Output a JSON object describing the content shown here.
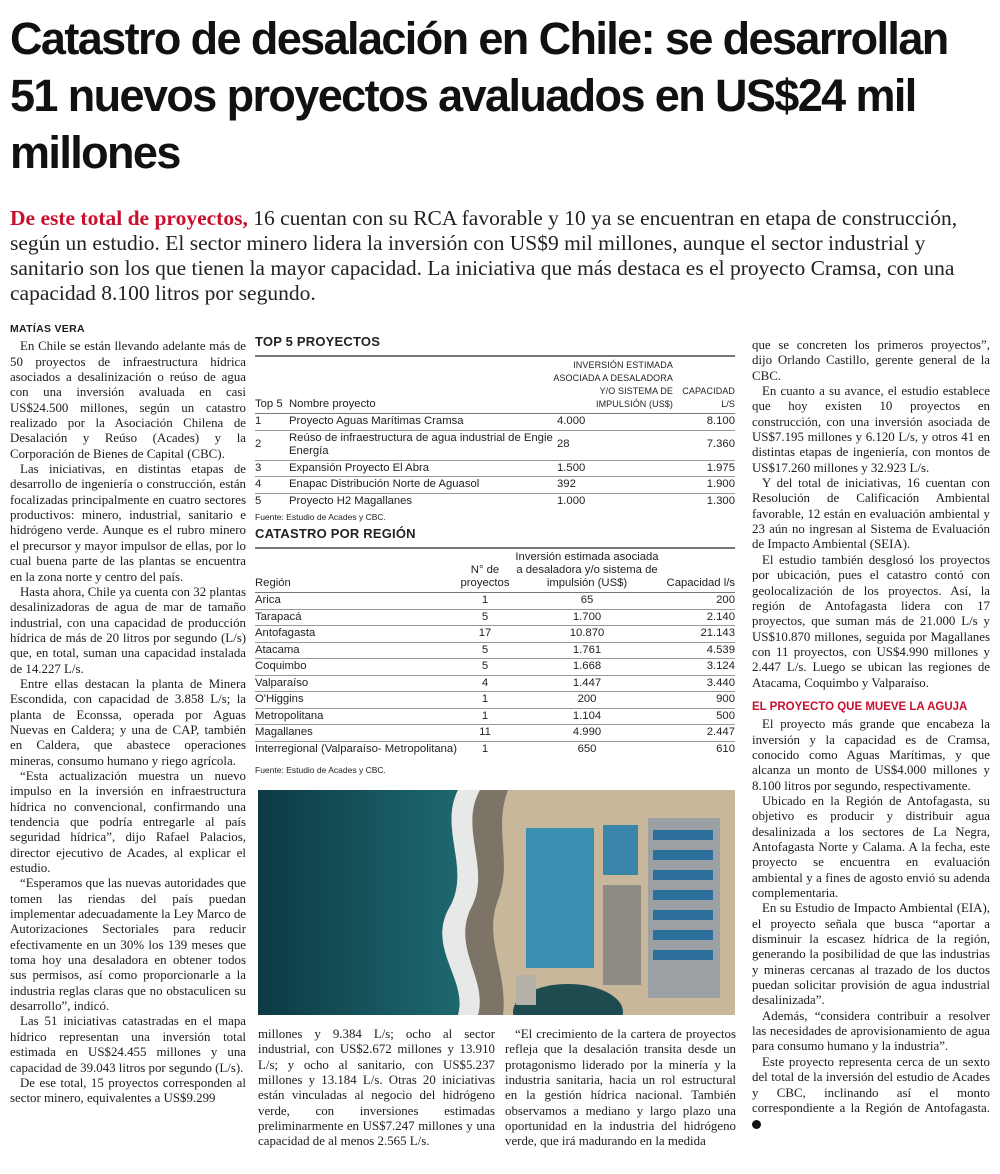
{
  "title": "Catastro de desalación en Chile: se desarrollan 51 nuevos proyectos avaluados en US$24 mil millones",
  "lead": {
    "kicker": "De este total de proyectos,",
    "text": " 16 cuentan con su RCA favorable y 10 ya se encuentran en etapa de construcción, según un estudio. El sector minero lidera la inversión con US$9 mil millones, aunque el sector industrial y sanitario son los que tienen la mayor capacidad. La iniciativa que más destaca es el proyecto Cramsa, con una capacidad 8.100 litros por segundo."
  },
  "byline": "MATÍAS VERA",
  "left_col": [
    "En Chile se están llevando adelante más de 50 proyectos de infraestructura hídrica asociados a desalinización o reúso de agua con una inversión avaluada en casi US$24.500 millones, según un catastro realizado por la Asociación Chilena de Desalación y Reúso (Acades) y la Corporación de Bienes de Capital (CBC).",
    "Las iniciativas, en distintas etapas de desarrollo de ingeniería o construcción, están focalizadas principalmente en cuatro sectores productivos: minero, industrial, sanitario e hidrógeno verde. Aunque es el rubro minero el precursor y mayor impulsor de ellas, por lo cual buena parte de las plantas se encuentra en la zona norte y centro del país.",
    "Hasta ahora, Chile ya cuenta con 32 plantas desalinizadoras de agua de mar de tamaño industrial, con una capacidad de producción hídrica de más de 20 litros por segundo (L/s) que, en total, suman una capacidad instalada de 14.227 L/s.",
    "Entre ellas destacan la planta de Minera Escondida, con capacidad de 3.858 L/s; la planta de Econssa, operada por Aguas Nuevas en Caldera; y una de CAP, también en Caldera, que abastece operaciones mineras, consumo humano y riego agrícola.",
    "“Esta actualización muestra un nuevo impulso en la inversión en infraestructura hídrica no convencional, confirmando una tendencia que podría entregarle al país seguridad hídrica”, dijo Rafael Palacios, director ejecutivo de Acades, al explicar el estudio.",
    "“Esperamos que las nuevas autoridades que tomen las riendas del país puedan implementar adecuadamente la Ley Marco de Autorizaciones Sectoriales para reducir efectivamente en un 30% los 139 meses que toma hoy una desaladora en obtener todos sus permisos, así como proporcionarle a la industria reglas claras que no obstaculicen su desarrollo”, indicó.",
    "Las 51 iniciativas catastradas en el mapa hídrico representan una inversión total estimada en US$24.455 millones y una capacidad de 39.043 litros por segundo (L/s).",
    "De ese total, 15 proyectos corresponden al sector minero, equivalentes a US$9.299"
  ],
  "mid_col_1": "millones y 9.384 L/s; ocho al sector industrial, con US$2.672 millones y 13.910 L/s; y ocho al sanitario, con US$5.237 millones y 13.184 L/s. Otras 20 iniciativas están vinculadas al negocio del hidrógeno verde, con inversiones estimadas preliminarmente en US$7.247 millones y una capacidad de al menos 2.565 L/s.",
  "mid_col_2": "“El crecimiento de la cartera de proyectos refleja que la desalación transita desde un protagonismo liderado por la minería y la industria sanitaria, hacia un rol estructural en la gestión hídrica nacional. También observamos a mediano y largo plazo una oportunidad en la industria del hidrógeno verde, que irá madurando en la medida",
  "right_col": [
    "que se concreten los primeros proyectos”, dijo Orlando Castillo, gerente general de la CBC.",
    "En cuanto a su avance, el estudio establece que hoy existen 10 proyectos en construcción, con una inversión asociada de US$7.195 millones y 6.120 L/s, y otros 41 en distintas etapas de ingeniería, con montos de US$17.260 millones y 32.923 L/s.",
    "Y del total de iniciativas, 16 cuentan con Resolución de Calificación Ambiental favorable, 12 están en evaluación ambiental y 23 aún no ingresan al Sistema de Evaluación de Impacto Ambiental (SEIA).",
    "El estudio también desglosó los proyectos por ubicación, pues el catastro contó con geolocalización de los proyectos. Así, la región de Antofagasta lidera con 17 proyectos, que suman más de 21.000 L/s y US$10.870 millones, seguida por Magallanes con 11 proyectos, con US$4.990 millones y 2.447 L/s. Luego se ubican las regiones de Atacama, Coquimbo y Valparaíso."
  ],
  "subhead": "EL PROYECTO QUE MUEVE LA AGUJA",
  "right_col_2": [
    "El proyecto más grande que encabeza la inversión y la capacidad es de Cramsa, conocido como Aguas Marítimas, y que alcanza un monto de US$4.000 millones y 8.100 litros por segundo, respectivamente.",
    "Ubicado en la Región de Antofagasta, su objetivo es producir y distribuir agua desalinizada a los sectores de La Negra, Antofagasta Norte y Calama. A la fecha, este proyecto se encuentra en evaluación ambiental y a fines de agosto envió su adenda complementaria.",
    "En su Estudio de Impacto Ambiental (EIA), el proyecto señala que busca “aportar a disminuir la escasez hídrica de la región, generando la posibilidad de que las industrias y mineras cercanas al trazado de los ductos puedan solicitar provisión de agua industrial desalinizada”.",
    "Además, “considera contribuir a resolver las necesidades de aprovisionamiento de agua para consumo humano y la industria”.",
    "Este proyecto representa cerca de un sexto del total de la inversión del estudio de Acades y CBC, inclinando así el monto correspondiente a la Región de Antofagasta."
  ],
  "top5": {
    "heading": "TOP 5 PROYECTOS",
    "headers": [
      "Top 5",
      "Nombre proyecto",
      "Inversión estimada asociada a desaladora y/o sistema de impulsión (US$)",
      "Capacidad L/s"
    ],
    "rows": [
      [
        "1",
        "Proyecto Aguas Marítimas Cramsa",
        "4.000",
        "8.100"
      ],
      [
        "2",
        "Reúso de infraestructura de agua industrial de Engie Energía",
        "28",
        "7.360"
      ],
      [
        "3",
        "Expansión Proyecto El Abra",
        "1.500",
        "1.975"
      ],
      [
        "4",
        "Enapac Distribución Norte de Aguasol",
        "392",
        "1.900"
      ],
      [
        "5",
        "Proyecto H2 Magallanes",
        "1.000",
        "1.300"
      ]
    ],
    "source": "Fuente: Estudio de Acades y CBC."
  },
  "regions": {
    "heading": "CATASTRO POR REGIÓN",
    "headers": [
      "Región",
      "N° de proyectos",
      "Inversión estimada asociada a desaladora y/o sistema de impulsión (US$)",
      "Capacidad l/s"
    ],
    "rows": [
      [
        "Arica",
        "1",
        "65",
        "200"
      ],
      [
        "Tarapacá",
        "5",
        "1.700",
        "2.140"
      ],
      [
        "Antofagasta",
        "17",
        "10.870",
        "21.143"
      ],
      [
        "Atacama",
        "5",
        "1.761",
        "4.539"
      ],
      [
        "Coquimbo",
        "5",
        "1.668",
        "3.124"
      ],
      [
        "Valparaíso",
        "4",
        "1.447",
        "3.440"
      ],
      [
        "O'Higgins",
        "1",
        "200",
        "900"
      ],
      [
        "Metropolitana",
        "1",
        "1.104",
        "500"
      ],
      [
        "Magallanes",
        "11",
        "4.990",
        "2.447"
      ],
      [
        "Interregional (Valparaíso- Metropolitana)",
        "1",
        "650",
        "610"
      ]
    ],
    "source": "Fuente: Estudio de Acades y CBC."
  },
  "colors": {
    "accent": "#c8102e",
    "text": "#1a1a1a"
  }
}
